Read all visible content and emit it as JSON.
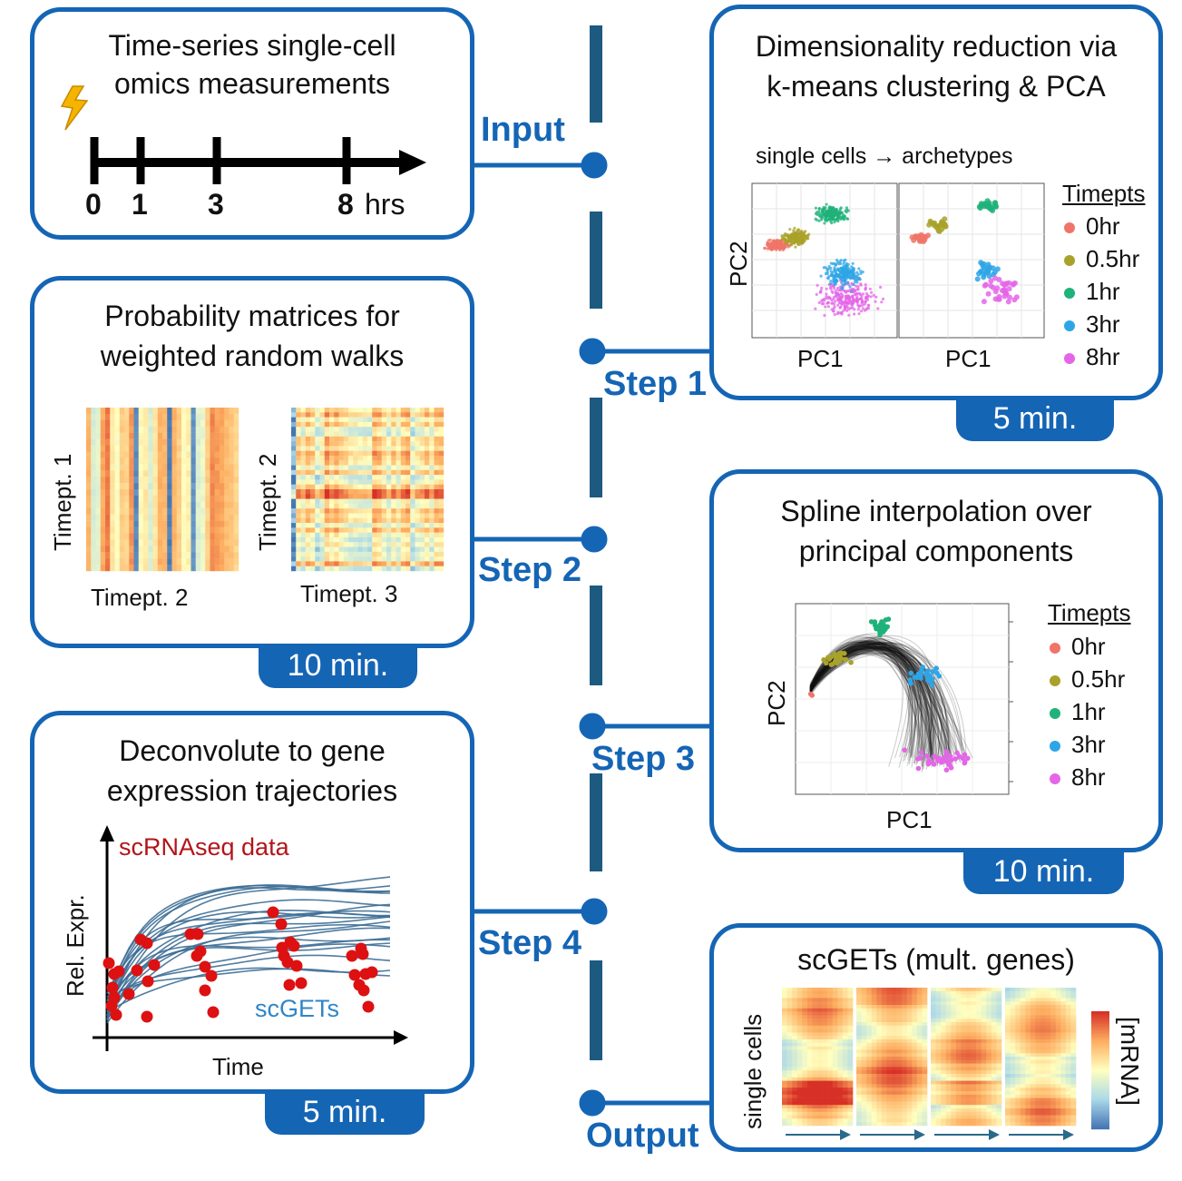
{
  "colors": {
    "accent": "#1565b5",
    "t0": "#f07468",
    "t05": "#a9a22a",
    "t1": "#1fb27a",
    "t3": "#2ea5e6",
    "t8": "#e466e8",
    "data_red": "#dd1111",
    "data_label_red": "#b3141a",
    "curve_blue": "#3d6e96"
  },
  "icons": {
    "stimulus": "lightning-bolt-icon",
    "arrow": "right-arrow-icon"
  },
  "input_box": {
    "title_line1": "Time-series single-cell",
    "title_line2": "omics measurements",
    "timepoints": [
      "0",
      "1",
      "3",
      "8"
    ],
    "unit": "hrs"
  },
  "step1_box": {
    "title_line1": "Dimensionality reduction via",
    "title_line2": "k-means clustering & PCA",
    "subtitle": "single cells → archetypes",
    "ylabel": "PC2",
    "xlabel_left": "PC1",
    "xlabel_right": "PC1",
    "legend_title": "Timepts",
    "legend": [
      "0hr",
      "0.5hr",
      "1hr",
      "3hr",
      "8hr"
    ],
    "time": "5 min."
  },
  "step2_box": {
    "title_line1": "Probability matrices for",
    "title_line2": "weighted random walks",
    "left_ylabel": "Timept. 1",
    "left_xlabel": "Timept. 2",
    "right_ylabel": "Timept. 2",
    "right_xlabel": "Timept. 3",
    "time": "10 min."
  },
  "step3_box": {
    "title_line1": "Spline interpolation over",
    "title_line2": "principal components",
    "ylabel": "PC2",
    "xlabel": "PC1",
    "legend_title": "Timepts",
    "legend": [
      "0hr",
      "0.5hr",
      "1hr",
      "3hr",
      "8hr"
    ],
    "time": "10 min."
  },
  "step4_box": {
    "title_line1": "Deconvolute to gene",
    "title_line2": "expression trajectories",
    "data_label": "scRNAseq data",
    "curve_label": "scGETs",
    "ylabel": "Rel. Expr.",
    "xlabel": "Time",
    "time": "5 min."
  },
  "output_box": {
    "title": "scGETs (mult. genes)",
    "ylabel": "single cells",
    "colorbar_label": "[mRNA]"
  },
  "steps": {
    "input": "Input",
    "step1": "Step 1",
    "step2": "Step 2",
    "step3": "Step 3",
    "step4": "Step 4",
    "output": "Output"
  }
}
